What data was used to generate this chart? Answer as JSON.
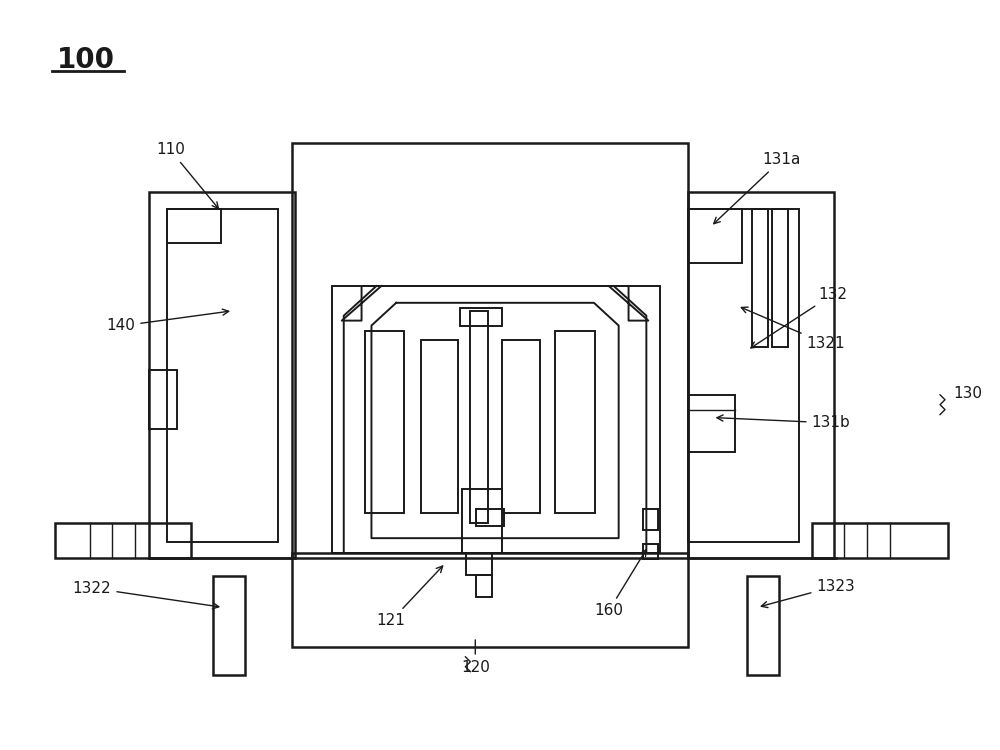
{
  "bg_color": "#ffffff",
  "lc": "#1a1a1a",
  "lw_thick": 1.8,
  "lw_med": 1.4,
  "lw_thin": 1.0
}
